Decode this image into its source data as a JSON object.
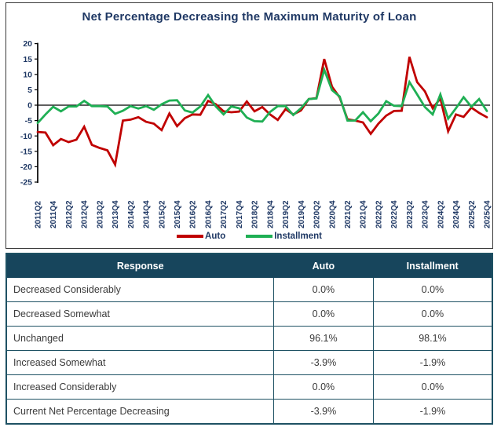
{
  "chart": {
    "title": "Net Percentage Decreasing the Maximum Maturity of Loan",
    "legend": [
      {
        "label": "Auto",
        "color": "#C00000"
      },
      {
        "label": "Installment",
        "color": "#1FAF54"
      }
    ]
  },
  "chart_data": {
    "type": "line",
    "title": "Net Percentage Decreasing the Maximum Maturity of Loan",
    "xlabel": "",
    "ylabel": "",
    "ylim": [
      -25,
      20
    ],
    "ytick_step": 5,
    "yticks": [
      20,
      15,
      10,
      5,
      0,
      -5,
      -10,
      -15,
      -20,
      -25
    ],
    "grid": "zero-line-only",
    "legend_position": "bottom",
    "x_tick_every": 2,
    "x": [
      "2011Q2",
      "2011Q3",
      "2011Q4",
      "2012Q1",
      "2012Q2",
      "2012Q3",
      "2012Q4",
      "2013Q1",
      "2013Q2",
      "2013Q3",
      "2013Q4",
      "2014Q1",
      "2014Q2",
      "2014Q3",
      "2014Q4",
      "2015Q1",
      "2015Q2",
      "2015Q3",
      "2015Q4",
      "2016Q1",
      "2016Q2",
      "2016Q3",
      "2016Q4",
      "2017Q1",
      "2017Q2",
      "2017Q3",
      "2017Q4",
      "2018Q1",
      "2018Q2",
      "2018Q3",
      "2018Q4",
      "2019Q1",
      "2019Q2",
      "2019Q3",
      "2019Q4",
      "2020Q1",
      "2020Q2",
      "2020Q3",
      "2020Q4",
      "2021Q1",
      "2021Q2",
      "2021Q3",
      "2021Q4",
      "2022Q1",
      "2022Q2",
      "2022Q3",
      "2022Q4",
      "2023Q1",
      "2023Q2",
      "2023Q3",
      "2023Q4",
      "2024Q1",
      "2024Q2",
      "2024Q3",
      "2024Q4",
      "2025Q1",
      "2025Q2",
      "2025Q3",
      "2025Q4"
    ],
    "series": [
      {
        "name": "Auto",
        "color": "#C00000",
        "values": [
          -8.7,
          -8.9,
          -13.0,
          -11.0,
          -12.0,
          -11.2,
          -7.0,
          -12.9,
          -13.9,
          -14.7,
          -19.3,
          -5.0,
          -4.7,
          -3.9,
          -5.4,
          -6.0,
          -8.1,
          -2.7,
          -6.8,
          -4.2,
          -3.0,
          -3.1,
          1.4,
          0.3,
          -2.0,
          -2.3,
          -2.1,
          1.2,
          -2.0,
          -0.6,
          -3.0,
          -4.8,
          -1.3,
          -3.0,
          -1.7,
          2.0,
          2.3,
          15.0,
          6.0,
          2.5,
          -4.6,
          -5.0,
          -5.6,
          -9.3,
          -6.0,
          -3.4,
          -1.9,
          -1.8,
          15.7,
          7.5,
          4.5,
          -1.0,
          2.2,
          -8.5,
          -3.0,
          -3.8,
          -0.8,
          -2.5,
          -3.9
        ]
      },
      {
        "name": "Installment",
        "color": "#1FAF54",
        "values": [
          -5.8,
          -3.0,
          -0.5,
          -2.0,
          -0.4,
          -0.4,
          1.4,
          -0.3,
          -0.3,
          -0.4,
          -2.8,
          -1.8,
          -0.3,
          -1.1,
          -0.3,
          -1.5,
          0.3,
          1.5,
          1.6,
          -1.7,
          -2.4,
          -0.4,
          3.3,
          -0.4,
          -3.0,
          -0.4,
          -1.0,
          -4.0,
          -5.2,
          -5.3,
          -2.2,
          -0.3,
          -0.3,
          -3.2,
          -1.0,
          2.0,
          2.2,
          11.5,
          4.9,
          2.8,
          -5.0,
          -5.0,
          -2.3,
          -5.2,
          -2.7,
          1.3,
          -0.2,
          -0.3,
          7.5,
          3.5,
          -0.6,
          -3.0,
          3.5,
          -4.4,
          -1.0,
          2.6,
          -0.5,
          2.0,
          -1.9
        ]
      }
    ]
  },
  "table": {
    "headers": [
      "Response",
      "Auto",
      "Installment"
    ],
    "rows": [
      [
        "Decreased Considerably",
        "0.0%",
        "0.0%"
      ],
      [
        "Decreased Somewhat",
        "0.0%",
        "0.0%"
      ],
      [
        "Unchanged",
        "96.1%",
        "98.1%"
      ],
      [
        "Increased Somewhat",
        "-3.9%",
        "-1.9%"
      ],
      [
        "Increased Considerably",
        "0.0%",
        "0.0%"
      ],
      [
        "Current Net Percentage Decreasing",
        "-3.9%",
        "-1.9%"
      ]
    ]
  },
  "colors": {
    "title_text": "#1F3864",
    "axis_text": "#1F3864",
    "auto_line": "#C00000",
    "installment_line": "#1FAF54",
    "table_header_bg": "#17455C",
    "table_border": "#1E5163",
    "chart_border": "#3a3a3a"
  }
}
